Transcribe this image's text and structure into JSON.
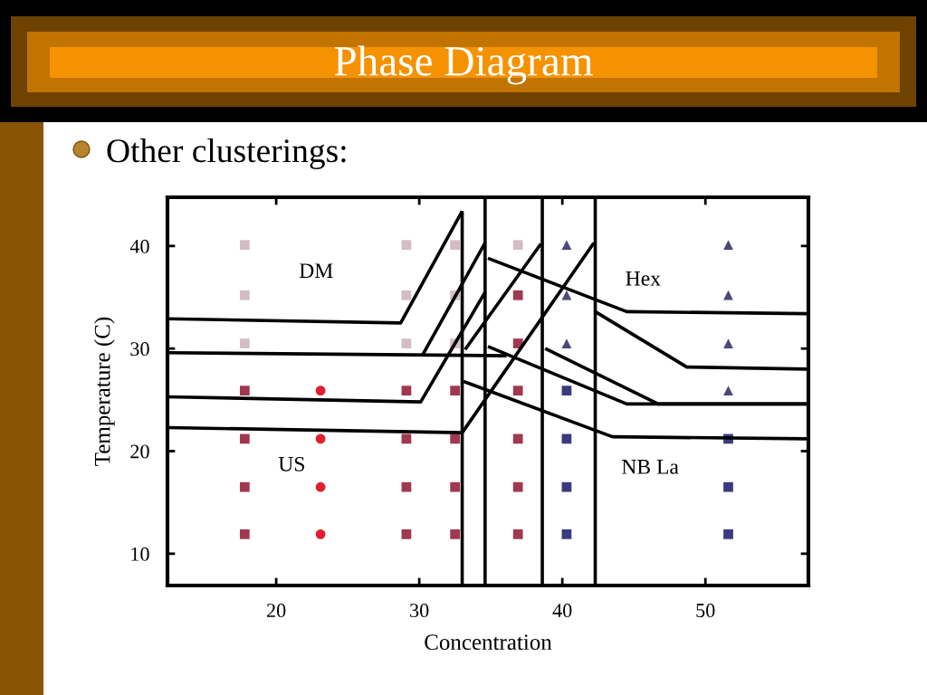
{
  "chart_data": {
    "type": "scatter",
    "title": "Phase Diagram",
    "subtitle": "Other clusterings:",
    "xlabel": "Concentration",
    "ylabel": "Temperature (C)",
    "xlim": [
      12.4,
      57.2
    ],
    "ylim": [
      6.9,
      44.75
    ],
    "xticks": [
      20,
      30,
      40,
      50
    ],
    "yticks": [
      10,
      20,
      30,
      40
    ],
    "series": [
      {
        "marker": "square",
        "color": "#d4bcc4",
        "x": [
          17.8,
          17.8,
          17.8,
          29.1,
          29.1,
          29.1,
          32.5,
          32.5,
          32.5,
          36.9
        ],
        "values": [
          40.1,
          35.2,
          30.5,
          40.1,
          35.2,
          30.5,
          40.1,
          35.2,
          30.5,
          40.1
        ]
      },
      {
        "marker": "square",
        "color": "#a03850",
        "x": [
          17.8,
          17.8,
          17.8,
          17.8,
          29.1,
          29.1,
          29.1,
          29.1,
          32.5,
          32.5,
          32.5,
          32.5,
          36.9,
          36.9,
          36.9,
          36.9,
          36.9,
          36.9
        ],
        "values": [
          25.9,
          21.2,
          16.5,
          11.9,
          25.9,
          21.2,
          16.5,
          11.9,
          25.9,
          21.2,
          16.5,
          11.9,
          35.2,
          30.5,
          25.9,
          21.2,
          16.5,
          11.9
        ]
      },
      {
        "marker": "circle",
        "color": "#e02030",
        "x": [
          23.1,
          23.1,
          23.1,
          23.1
        ],
        "values": [
          25.9,
          21.2,
          16.5,
          11.9
        ]
      },
      {
        "marker": "triangle",
        "color": "#4a4a78",
        "x": [
          40.3,
          40.3,
          40.3,
          51.6,
          51.6,
          51.6,
          51.6
        ],
        "values": [
          40.1,
          35.2,
          30.5,
          40.1,
          35.2,
          30.5,
          25.9
        ]
      },
      {
        "marker": "square",
        "color": "#3a3a80",
        "x": [
          40.3,
          40.3,
          40.3,
          40.3,
          51.6,
          51.6,
          51.6
        ],
        "values": [
          25.9,
          21.2,
          16.5,
          11.9,
          21.2,
          16.5,
          11.9
        ]
      },
      {
        "type": "line",
        "color": "#000000",
        "x": [
          12.4,
          28.7,
          33.0
        ],
        "values": [
          32.9,
          32.5,
          43.4
        ]
      },
      {
        "type": "line",
        "color": "#000000",
        "x": [
          12.4,
          36.1
        ],
        "values": [
          29.6,
          29.3
        ]
      },
      {
        "type": "line",
        "color": "#000000",
        "x": [
          30.2,
          34.6
        ],
        "values": [
          29.3,
          40.3
        ]
      },
      {
        "type": "line",
        "color": "#000000",
        "x": [
          12.4,
          30.1,
          34.6
        ],
        "values": [
          25.3,
          24.8,
          35.5
        ]
      },
      {
        "type": "line",
        "color": "#000000",
        "x": [
          12.4,
          33.0,
          42.2
        ],
        "values": [
          22.3,
          21.8,
          40.3
        ]
      },
      {
        "type": "line",
        "color": "#000000",
        "x": [
          33.2,
          38.5
        ],
        "values": [
          29.9,
          40.2
        ]
      },
      {
        "type": "line",
        "color": "#000000",
        "x": [
          34.8,
          44.5,
          57.1
        ],
        "values": [
          38.8,
          33.6,
          33.4
        ]
      },
      {
        "type": "line",
        "color": "#000000",
        "x": [
          42.3,
          48.7,
          57.1
        ],
        "values": [
          33.6,
          28.2,
          28.0
        ]
      },
      {
        "type": "line",
        "color": "#000000",
        "x": [
          34.8,
          44.5,
          57.1
        ],
        "values": [
          30.2,
          24.6,
          24.6
        ]
      },
      {
        "type": "line",
        "color": "#000000",
        "x": [
          38.8,
          46.7,
          57.1
        ],
        "values": [
          30.0,
          24.6,
          24.6
        ]
      },
      {
        "type": "line",
        "color": "#000000",
        "x": [
          33.1,
          43.5,
          57.1
        ],
        "values": [
          26.8,
          21.4,
          21.2
        ]
      },
      {
        "type": "line",
        "color": "#000000",
        "x": [
          33.0,
          33.0
        ],
        "values": [
          43.4,
          6.9
        ]
      }
    ],
    "ref_lines": [
      {
        "axis": "x",
        "value": 34.6,
        "color": "#000000"
      },
      {
        "axis": "x",
        "value": 38.6,
        "color": "#000000"
      },
      {
        "axis": "x",
        "value": 42.3,
        "color": "#000000"
      }
    ],
    "annotations": [
      "DM",
      "Hex",
      "US",
      "NB La"
    ]
  }
}
